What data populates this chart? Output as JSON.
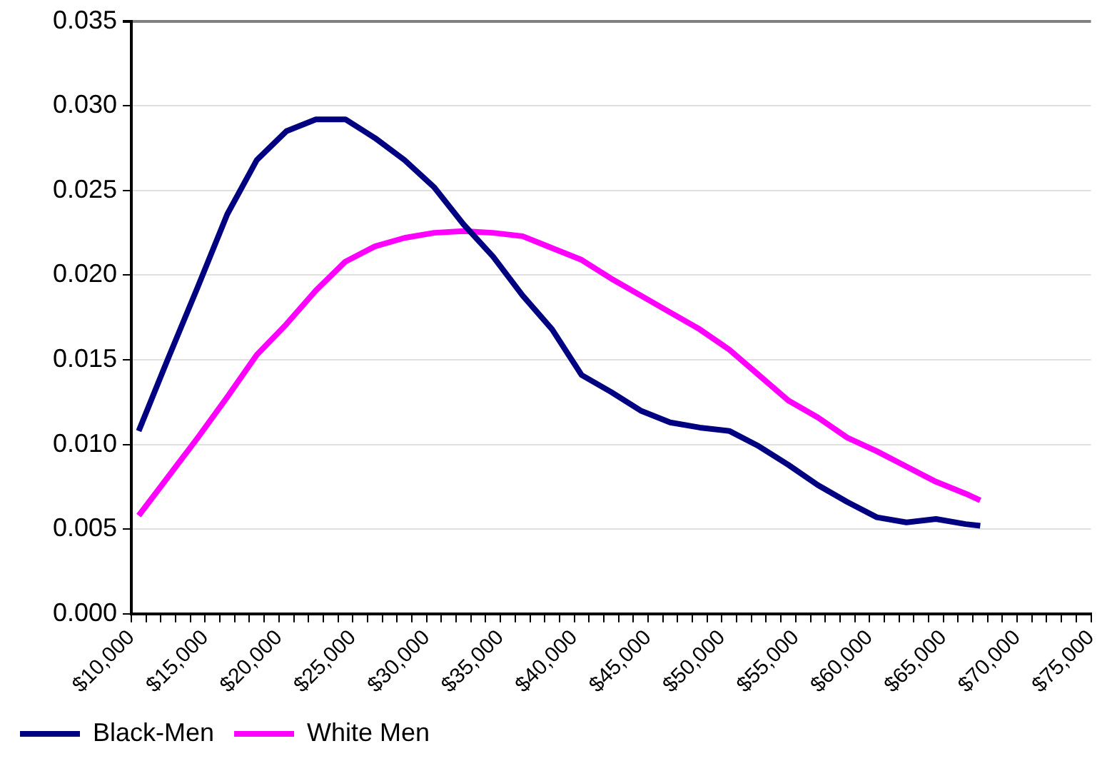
{
  "chart_data": {
    "type": "line",
    "x": [
      10500,
      12500,
      14500,
      16500,
      18500,
      20500,
      22500,
      24500,
      26500,
      28500,
      30500,
      32500,
      34500,
      36500,
      38500,
      40500,
      42500,
      44500,
      46500,
      48500,
      50500,
      52500,
      54500,
      56500,
      58500,
      60500,
      62500,
      64500,
      66500,
      67500
    ],
    "series": [
      {
        "name": "Black-Men",
        "color": "#000080",
        "values": [
          0.0108,
          0.0151,
          0.0193,
          0.0236,
          0.0268,
          0.0285,
          0.0292,
          0.0292,
          0.0281,
          0.0268,
          0.0252,
          0.023,
          0.0211,
          0.0188,
          0.0168,
          0.0141,
          0.0131,
          0.012,
          0.0113,
          0.011,
          0.0108,
          0.0099,
          0.0088,
          0.0076,
          0.0066,
          0.0057,
          0.0054,
          0.0056,
          0.0053,
          0.0052
        ]
      },
      {
        "name": "White Men",
        "color": "#ff00ff",
        "values": [
          0.0058,
          0.0081,
          0.0104,
          0.0128,
          0.0153,
          0.0171,
          0.0191,
          0.0208,
          0.0217,
          0.0222,
          0.0225,
          0.0226,
          0.0225,
          0.0223,
          0.0216,
          0.0209,
          0.0198,
          0.0188,
          0.0178,
          0.0168,
          0.0156,
          0.0141,
          0.0126,
          0.0116,
          0.0104,
          0.0096,
          0.0087,
          0.0078,
          0.0071,
          0.0067
        ]
      }
    ],
    "xlim": [
      10000,
      75000
    ],
    "xticks": [
      {
        "value": 10000,
        "label": "$10,000"
      },
      {
        "value": 11000,
        "label": null
      },
      {
        "value": 12000,
        "label": null
      },
      {
        "value": 13000,
        "label": null
      },
      {
        "value": 14000,
        "label": null
      },
      {
        "value": 15000,
        "label": "$15,000"
      },
      {
        "value": 16000,
        "label": null
      },
      {
        "value": 17000,
        "label": null
      },
      {
        "value": 18000,
        "label": null
      },
      {
        "value": 19000,
        "label": null
      },
      {
        "value": 20000,
        "label": "$20,000"
      },
      {
        "value": 21000,
        "label": null
      },
      {
        "value": 22000,
        "label": null
      },
      {
        "value": 23000,
        "label": null
      },
      {
        "value": 24000,
        "label": null
      },
      {
        "value": 25000,
        "label": "$25,000"
      },
      {
        "value": 26000,
        "label": null
      },
      {
        "value": 27000,
        "label": null
      },
      {
        "value": 28000,
        "label": null
      },
      {
        "value": 29000,
        "label": null
      },
      {
        "value": 30000,
        "label": "$30,000"
      },
      {
        "value": 31000,
        "label": null
      },
      {
        "value": 32000,
        "label": null
      },
      {
        "value": 33000,
        "label": null
      },
      {
        "value": 34000,
        "label": null
      },
      {
        "value": 35000,
        "label": "$35,000"
      },
      {
        "value": 36000,
        "label": null
      },
      {
        "value": 37000,
        "label": null
      },
      {
        "value": 38000,
        "label": null
      },
      {
        "value": 39000,
        "label": null
      },
      {
        "value": 40000,
        "label": "$40,000"
      },
      {
        "value": 41000,
        "label": null
      },
      {
        "value": 42000,
        "label": null
      },
      {
        "value": 43000,
        "label": null
      },
      {
        "value": 44000,
        "label": null
      },
      {
        "value": 45000,
        "label": "$45,000"
      },
      {
        "value": 46000,
        "label": null
      },
      {
        "value": 47000,
        "label": null
      },
      {
        "value": 48000,
        "label": null
      },
      {
        "value": 49000,
        "label": null
      },
      {
        "value": 50000,
        "label": "$50,000"
      },
      {
        "value": 51000,
        "label": null
      },
      {
        "value": 52000,
        "label": null
      },
      {
        "value": 53000,
        "label": null
      },
      {
        "value": 54000,
        "label": null
      },
      {
        "value": 55000,
        "label": "$55,000"
      },
      {
        "value": 56000,
        "label": null
      },
      {
        "value": 57000,
        "label": null
      },
      {
        "value": 58000,
        "label": null
      },
      {
        "value": 59000,
        "label": null
      },
      {
        "value": 60000,
        "label": "$60,000"
      },
      {
        "value": 61000,
        "label": null
      },
      {
        "value": 62000,
        "label": null
      },
      {
        "value": 63000,
        "label": null
      },
      {
        "value": 64000,
        "label": null
      },
      {
        "value": 65000,
        "label": "$65,000"
      },
      {
        "value": 66000,
        "label": null
      },
      {
        "value": 67000,
        "label": null
      },
      {
        "value": 68000,
        "label": null
      },
      {
        "value": 69000,
        "label": null
      },
      {
        "value": 70000,
        "label": "$70,000"
      },
      {
        "value": 71000,
        "label": null
      },
      {
        "value": 72000,
        "label": null
      },
      {
        "value": 73000,
        "label": null
      },
      {
        "value": 74000,
        "label": null
      },
      {
        "value": 75000,
        "label": "$75,000"
      }
    ],
    "ylim": [
      0,
      0.035
    ],
    "yticks": [
      {
        "value": 0,
        "label": "0.000"
      },
      {
        "value": 0.005,
        "label": "0.005"
      },
      {
        "value": 0.01,
        "label": "0.010"
      },
      {
        "value": 0.015,
        "label": "0.015"
      },
      {
        "value": 0.02,
        "label": "0.020"
      },
      {
        "value": 0.025,
        "label": "0.025"
      },
      {
        "value": 0.03,
        "label": "0.030"
      },
      {
        "value": 0.035,
        "label": "0.035"
      }
    ],
    "grid": "y",
    "legend": "bottom",
    "marker": "none",
    "line_style": "solid"
  }
}
